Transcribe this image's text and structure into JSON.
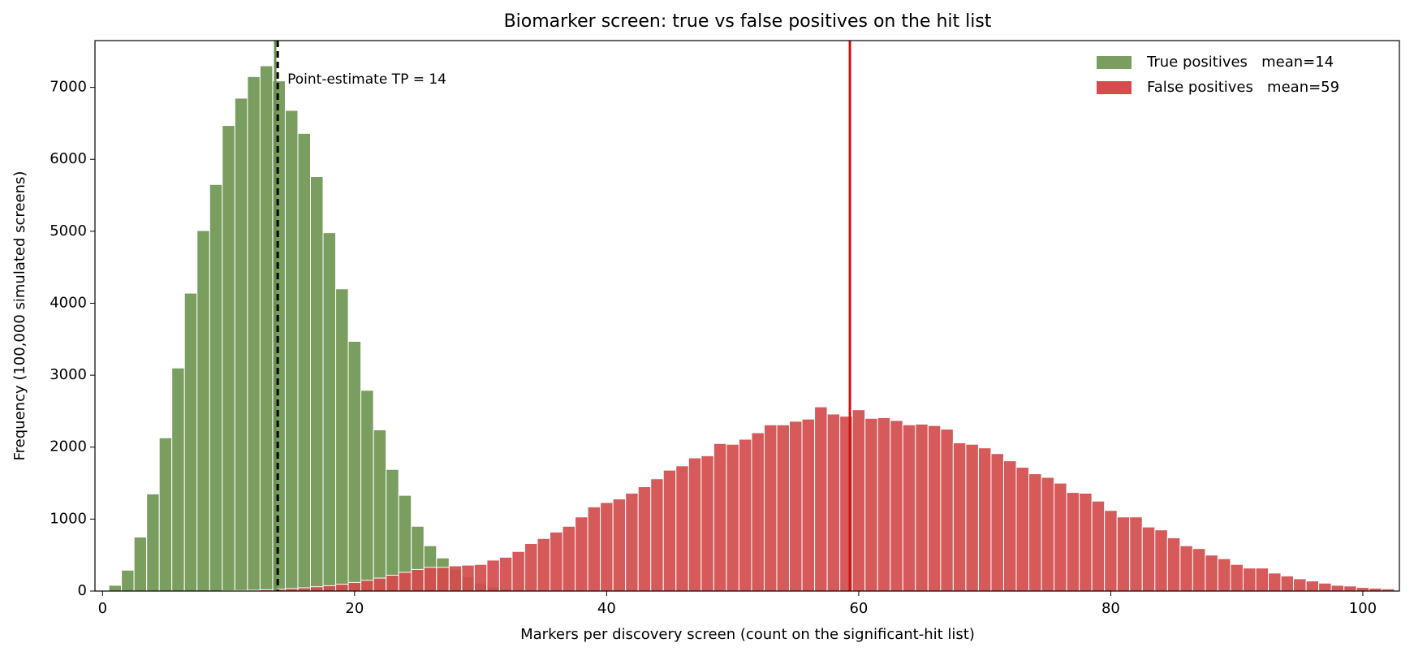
{
  "chart_data": {
    "type": "histogram",
    "title": "Biomarker screen: true vs false positives on the hit list",
    "x_label": "Markers per discovery screen (count on the significant-hit list)",
    "y_label": "Frequency  (100,000 simulated screens)",
    "xlim": [
      -0.6,
      102.9
    ],
    "ylim": [
      0,
      7650
    ],
    "xticks": [
      0,
      20,
      40,
      60,
      80,
      100
    ],
    "yticks": [
      0,
      1000,
      2000,
      3000,
      4000,
      5000,
      6000,
      7000
    ],
    "legend": "upper right",
    "series": [
      {
        "name": "True positives   mean=14",
        "color": "#7a9e5f",
        "bins": [
          0.5,
          1.5,
          2.5,
          3.5,
          4.5,
          5.5,
          6.5,
          7.5,
          8.5,
          9.5,
          10.5,
          11.5,
          12.5,
          13.5,
          14.5,
          15.5,
          16.5,
          17.5,
          18.5,
          19.5,
          20.5,
          21.5,
          22.5,
          23.5,
          24.5,
          25.5,
          26.5,
          27.5,
          28.5,
          29.5,
          30.5,
          31.5,
          32.5,
          33.5
        ],
        "values": [
          80,
          290,
          750,
          1350,
          2130,
          3100,
          4140,
          5010,
          5650,
          6470,
          6850,
          7150,
          7300,
          7090,
          6680,
          6360,
          5760,
          4980,
          4200,
          3470,
          2790,
          2240,
          1690,
          1330,
          900,
          630,
          460,
          300,
          200,
          110,
          60,
          30,
          15
        ]
      },
      {
        "name": "False positives   mean=59",
        "color": "#d44c4c",
        "bins": [
          9.5,
          10.5,
          11.5,
          12.5,
          13.5,
          14.5,
          15.5,
          16.5,
          17.5,
          18.5,
          19.5,
          20.5,
          21.5,
          22.5,
          23.5,
          24.5,
          25.5,
          26.5,
          27.5,
          28.5,
          29.5,
          30.5,
          31.5,
          32.5,
          33.5,
          34.5,
          35.5,
          36.5,
          37.5,
          38.5,
          39.5,
          40.5,
          41.5,
          42.5,
          43.5,
          44.5,
          45.5,
          46.5,
          47.5,
          48.5,
          49.5,
          50.5,
          51.5,
          52.5,
          53.5,
          54.5,
          55.5,
          56.5,
          57.5,
          58.5,
          59.5,
          60.5,
          61.5,
          62.5,
          63.5,
          64.5,
          65.5,
          66.5,
          67.5,
          68.5,
          69.5,
          70.5,
          71.5,
          72.5,
          73.5,
          74.5,
          75.5,
          76.5,
          77.5,
          78.5,
          79.5,
          80.5,
          81.5,
          82.5,
          83.5,
          84.5,
          85.5,
          86.5,
          87.5,
          88.5,
          89.5,
          90.5,
          91.5,
          92.5,
          93.5,
          94.5,
          95.5,
          96.5,
          97.5,
          98.5,
          99.5,
          100.5,
          101.5,
          102.5
        ],
        "values": [
          5,
          8,
          12,
          18,
          25,
          35,
          45,
          60,
          75,
          95,
          120,
          150,
          180,
          220,
          260,
          300,
          330,
          330,
          350,
          360,
          370,
          430,
          470,
          550,
          660,
          730,
          820,
          900,
          1030,
          1170,
          1230,
          1280,
          1360,
          1450,
          1560,
          1680,
          1740,
          1850,
          1880,
          2050,
          2040,
          2110,
          2200,
          2310,
          2310,
          2360,
          2390,
          2560,
          2460,
          2430,
          2520,
          2400,
          2410,
          2370,
          2310,
          2320,
          2300,
          2250,
          2060,
          2040,
          1990,
          1910,
          1810,
          1720,
          1630,
          1580,
          1500,
          1370,
          1360,
          1250,
          1120,
          1030,
          1030,
          890,
          850,
          740,
          630,
          590,
          500,
          450,
          370,
          320,
          320,
          250,
          210,
          170,
          140,
          110,
          80,
          70,
          50,
          40,
          30
        ]
      }
    ],
    "vlines": [
      {
        "x": 13.7,
        "color": "#6b8e4e",
        "style": "solid"
      },
      {
        "x": 13.9,
        "color": "#000000",
        "style": "dashed"
      },
      {
        "x": 59.3,
        "color": "#cc1111",
        "style": "solid"
      }
    ],
    "annotation": "Point-estimate TP = 14"
  }
}
